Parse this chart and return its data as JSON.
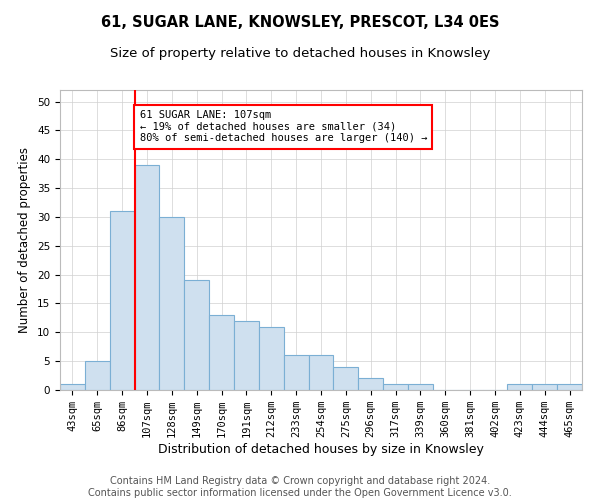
{
  "title": "61, SUGAR LANE, KNOWSLEY, PRESCOT, L34 0ES",
  "subtitle": "Size of property relative to detached houses in Knowsley",
  "xlabel": "Distribution of detached houses by size in Knowsley",
  "ylabel": "Number of detached properties",
  "footer_line1": "Contains HM Land Registry data © Crown copyright and database right 2024.",
  "footer_line2": "Contains public sector information licensed under the Open Government Licence v3.0.",
  "bin_labels": [
    "43sqm",
    "65sqm",
    "86sqm",
    "107sqm",
    "128sqm",
    "149sqm",
    "170sqm",
    "191sqm",
    "212sqm",
    "233sqm",
    "254sqm",
    "275sqm",
    "296sqm",
    "317sqm",
    "339sqm",
    "360sqm",
    "381sqm",
    "402sqm",
    "423sqm",
    "444sqm",
    "465sqm"
  ],
  "bar_values": [
    1,
    5,
    31,
    39,
    30,
    19,
    13,
    12,
    11,
    6,
    6,
    4,
    2,
    1,
    1,
    0,
    0,
    0,
    1,
    1,
    1
  ],
  "bar_color": "#cfe0ef",
  "bar_edge_color": "#7bafd4",
  "bar_edge_width": 0.8,
  "grid_color": "#d0d0d0",
  "ylim": [
    0,
    52
  ],
  "yticks": [
    0,
    5,
    10,
    15,
    20,
    25,
    30,
    35,
    40,
    45,
    50
  ],
  "vline_x": 3,
  "vline_color": "red",
  "annotation_text": "61 SUGAR LANE: 107sqm\n← 19% of detached houses are smaller (34)\n80% of semi-detached houses are larger (140) →",
  "annotation_box_color": "white",
  "annotation_box_edge_color": "red",
  "annotation_fontsize": 7.5,
  "title_fontsize": 10.5,
  "subtitle_fontsize": 9.5,
  "xlabel_fontsize": 9,
  "ylabel_fontsize": 8.5,
  "tick_fontsize": 7.5,
  "footer_fontsize": 7
}
